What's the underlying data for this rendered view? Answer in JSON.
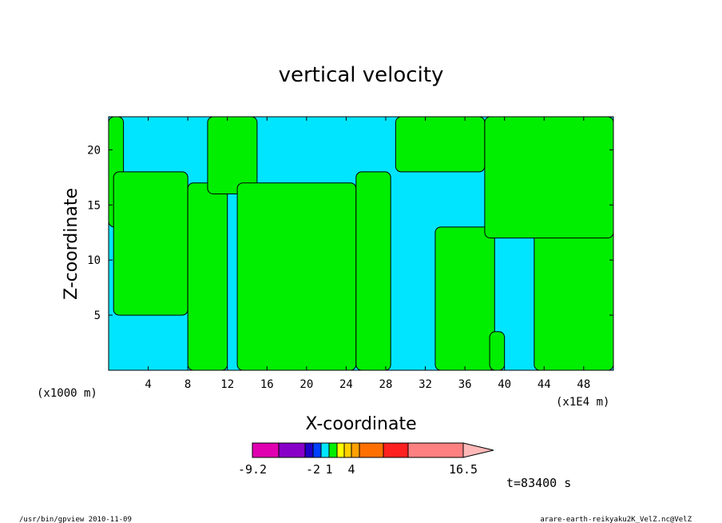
{
  "chart_data": {
    "type": "heatmap",
    "title": "vertical velocity",
    "xlabel": "X-coordinate",
    "ylabel": "Z-coordinate",
    "x_unit_left": "(x1000 m)",
    "x_unit_right": "(x1E4 m)",
    "xlim": [
      0,
      51
    ],
    "ylim": [
      0,
      23
    ],
    "x_ticks": [
      4,
      8,
      12,
      16,
      20,
      24,
      28,
      32,
      36,
      40,
      44,
      48
    ],
    "y_ticks": [
      5,
      10,
      15,
      20
    ],
    "colors": {
      "negative_region": "#00e5ff",
      "positive_region": "#00ee00",
      "contour_line": "#000000"
    },
    "regions": [
      {
        "sign": "positive",
        "x_range": [
          0,
          1.5
        ],
        "z_range": [
          13,
          23
        ]
      },
      {
        "sign": "positive",
        "x_range": [
          0.5,
          8
        ],
        "z_range": [
          5,
          18
        ]
      },
      {
        "sign": "positive",
        "x_range": [
          8,
          12
        ],
        "z_range": [
          0,
          17
        ]
      },
      {
        "sign": "positive",
        "x_range": [
          10,
          15
        ],
        "z_range": [
          16,
          23
        ]
      },
      {
        "sign": "positive",
        "x_range": [
          13,
          25
        ],
        "z_range": [
          0,
          17
        ]
      },
      {
        "sign": "positive",
        "x_range": [
          25,
          28.5
        ],
        "z_range": [
          0,
          18
        ]
      },
      {
        "sign": "positive",
        "x_range": [
          29,
          38
        ],
        "z_range": [
          18,
          23
        ]
      },
      {
        "sign": "positive",
        "x_range": [
          33,
          39
        ],
        "z_range": [
          0,
          13
        ]
      },
      {
        "sign": "positive",
        "x_range": [
          38.5,
          40
        ],
        "z_range": [
          0,
          3.5
        ]
      },
      {
        "sign": "positive",
        "x_range": [
          43,
          51
        ],
        "z_range": [
          0,
          13
        ]
      },
      {
        "sign": "positive",
        "x_range": [
          38,
          51
        ],
        "z_range": [
          12,
          23
        ]
      }
    ],
    "colorbar": {
      "colors": [
        "#e000b0",
        "#8800c8",
        "#2000c8",
        "#0040ff",
        "#00e5ff",
        "#00ee00",
        "#ffff00",
        "#ffd000",
        "#ffa000",
        "#ff7000",
        "#ff2020",
        "#ff8080",
        "#ffb8b8"
      ],
      "tick_labels": [
        "-9.2",
        "-2",
        "1",
        "4",
        "16.5"
      ]
    },
    "time_label": "t=83400 s"
  },
  "footer": {
    "left": "/usr/bin/gpview  2010-11-09",
    "right": "arare-earth-reikyaku2K_VelZ.nc@VelZ"
  }
}
